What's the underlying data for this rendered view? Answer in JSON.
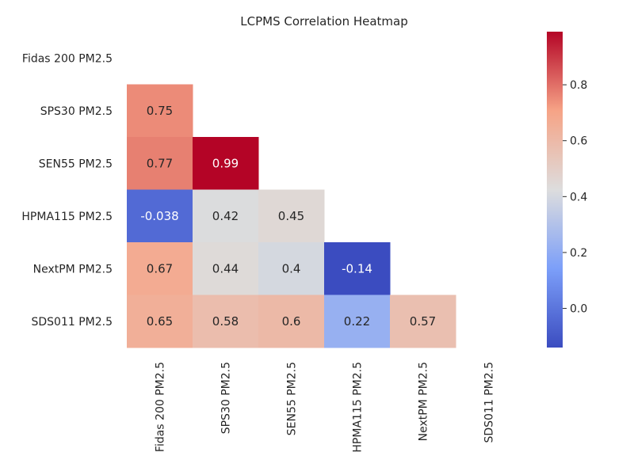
{
  "chart_data": {
    "type": "heatmap",
    "title": "LCPMS Correlation Heatmap",
    "labels": [
      "Fidas 200 PM2.5",
      "SPS30 PM2.5",
      "SEN55 PM2.5",
      "HPMA115 PM2.5",
      "NextPM PM2.5",
      "SDS011 PM2.5"
    ],
    "matrix": [
      [
        null,
        null,
        null,
        null,
        null,
        null
      ],
      [
        0.75,
        null,
        null,
        null,
        null,
        null
      ],
      [
        0.77,
        0.99,
        null,
        null,
        null,
        null
      ],
      [
        -0.038,
        0.42,
        0.45,
        null,
        null,
        null
      ],
      [
        0.67,
        0.44,
        0.4,
        -0.14,
        null,
        null
      ],
      [
        0.65,
        0.58,
        0.6,
        0.22,
        0.57,
        null
      ]
    ],
    "mask": "upper-triangle-including-diagonal",
    "colormap": "coolwarm",
    "vmin": -0.14,
    "vmax": 0.99,
    "colorbar_ticks": [
      0.0,
      0.2,
      0.4,
      0.6,
      0.8
    ],
    "colorbar_tick_labels": [
      "0.0",
      "0.2",
      "0.4",
      "0.6",
      "0.8"
    ],
    "legend": "colorbar-right"
  }
}
